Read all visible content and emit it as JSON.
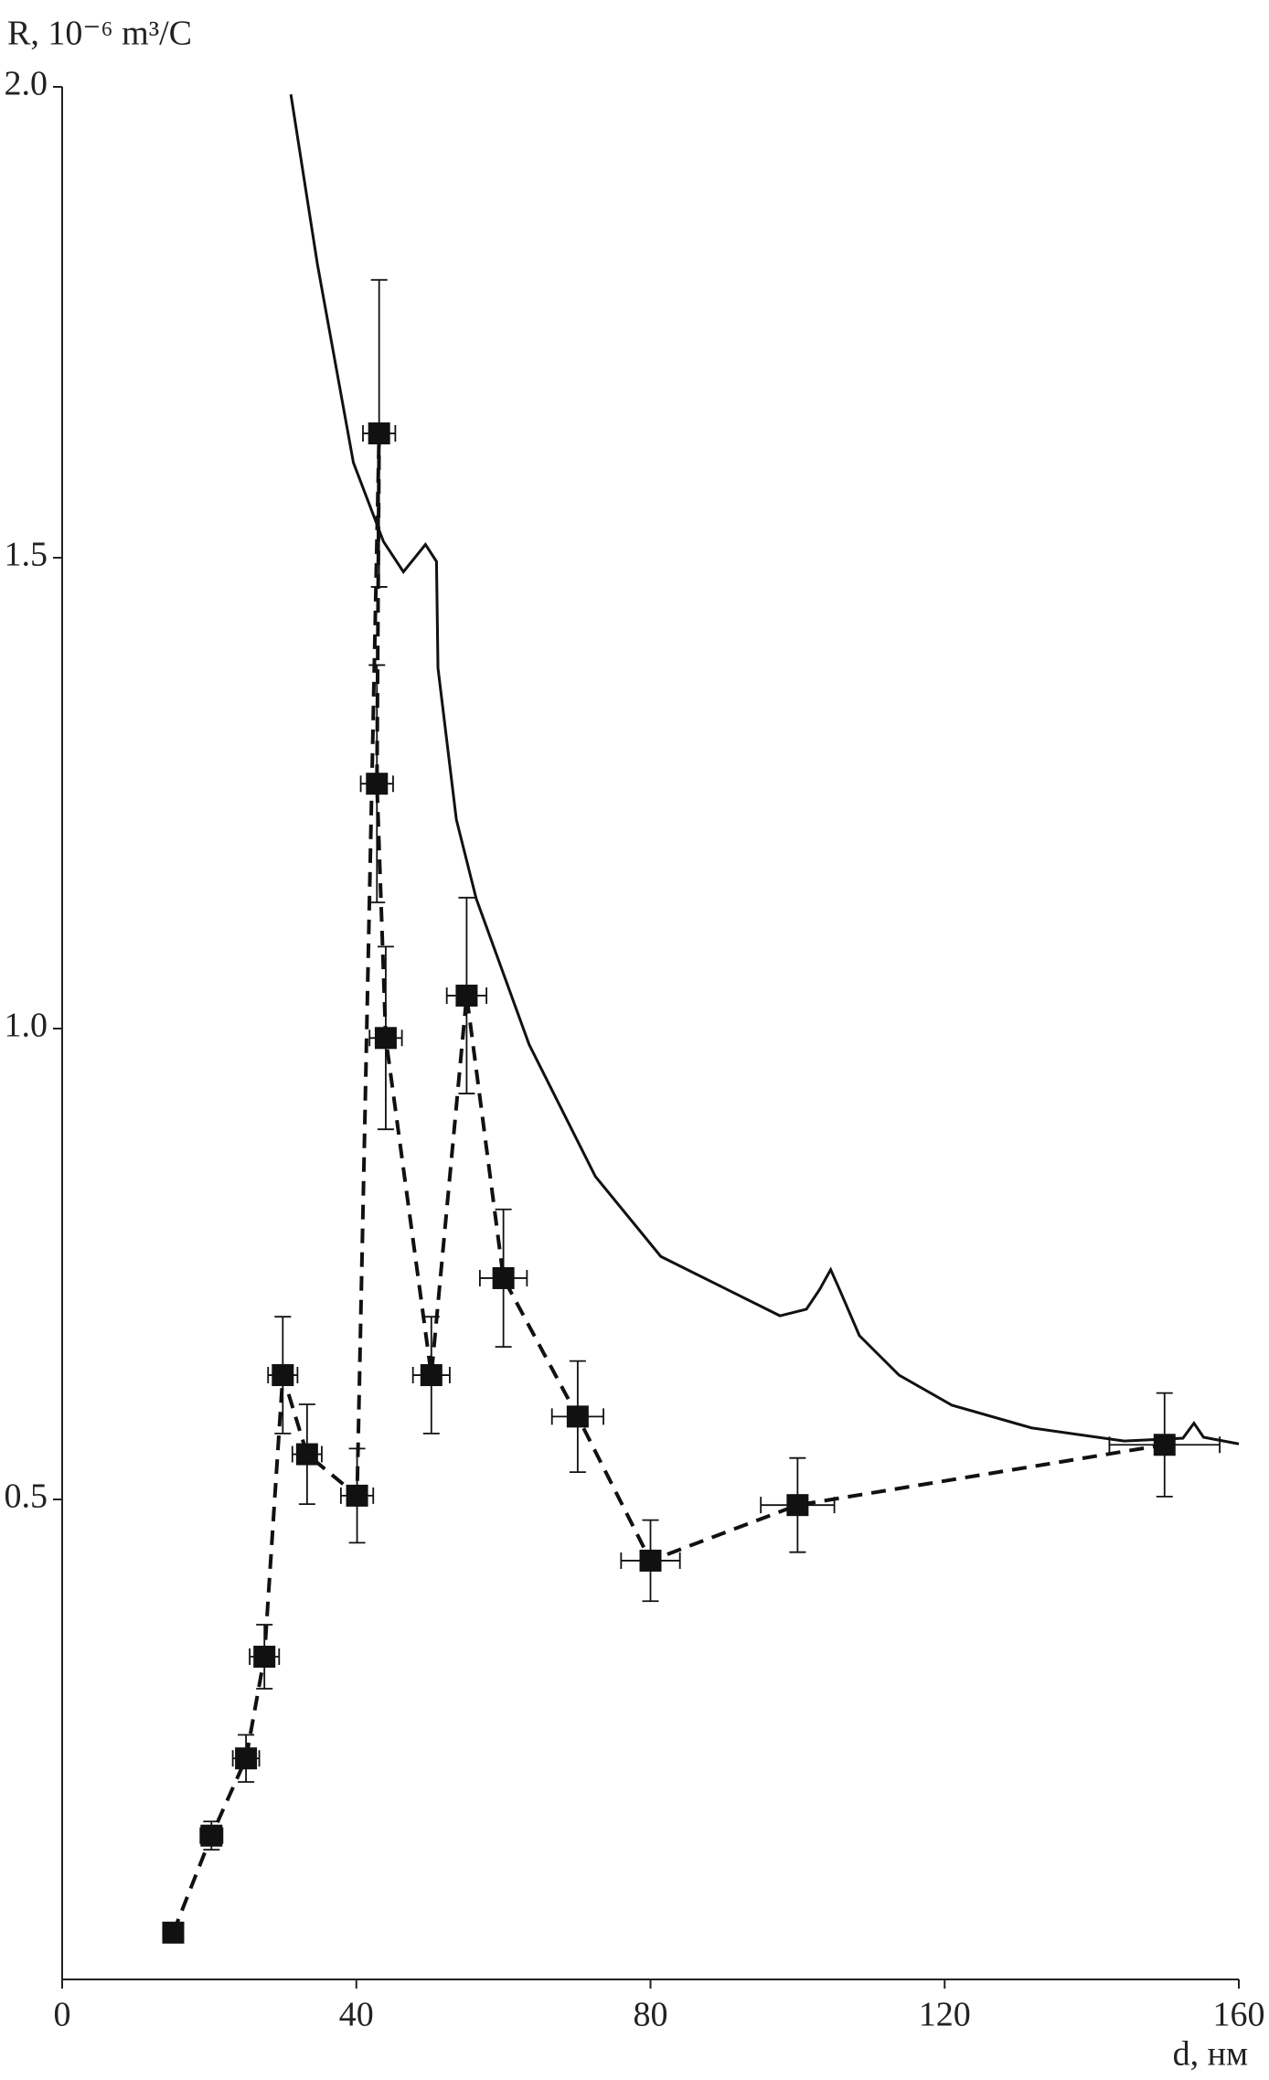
{
  "chart_data": {
    "type": "line",
    "y_label": "R, 10⁻⁶ m³/C",
    "x_label": "d, нм",
    "xlim": [
      0,
      160
    ],
    "ylim": [
      0,
      2
    ],
    "xticks": [
      0,
      40,
      80,
      120,
      160
    ],
    "yticks": [
      0.5,
      {
        "value": 1,
        "label": "1.0"
      },
      1.5,
      {
        "value": 2,
        "label": "2.0"
      }
    ],
    "series": [
      {
        "color": "#111111",
        "line": "dashed",
        "marker": "square",
        "x": [
          15.1,
          20.3,
          25.0,
          27.5,
          30.0,
          33.3,
          40.1,
          43.1,
          42.8,
          44.0,
          50.2,
          55.0,
          60.0,
          70.1,
          80.0,
          100.0,
          149.9
        ],
        "values": [
          0.04,
          0.143,
          0.225,
          0.333,
          0.632,
          0.548,
          0.504,
          1.632,
          1.26,
          0.99,
          0.632,
          1.035,
          0.735,
          0.588,
          0.435,
          0.494,
          0.558
        ],
        "errors": [
          null,
          0.015,
          0.025,
          0.034,
          0.062,
          0.053,
          0.05,
          0.163,
          0.126,
          0.097,
          0.062,
          0.104,
          0.073,
          0.059,
          0.043,
          0.05,
          0.055
        ],
        "x_errors": [
          null,
          1.5,
          1.8,
          2.0,
          2.0,
          2.0,
          2.2,
          2.2,
          2.2,
          2.2,
          2.5,
          2.7,
          3.2,
          3.5,
          4.0,
          5.0,
          7.5
        ]
      },
      {
        "color": "#111111",
        "line": "solid",
        "x": [
          31.1,
          34.7,
          39.6,
          43.7,
          46.4,
          49.4,
          50.9,
          51.1,
          53.6,
          56.3,
          63.5,
          72.5,
          81.4,
          90.4,
          97.6,
          101.2,
          103.0,
          104.5,
          105.7,
          108.4,
          113.8,
          121.0,
          131.8,
          144.4,
          152.4,
          153.9,
          155.2,
          160.0
        ],
        "values": [
          1.992,
          1.812,
          1.601,
          1.517,
          1.485,
          1.514,
          1.496,
          1.383,
          1.222,
          1.138,
          0.983,
          0.843,
          0.758,
          0.723,
          0.695,
          0.702,
          0.723,
          0.744,
          0.723,
          0.674,
          0.632,
          0.6,
          0.576,
          0.562,
          0.565,
          0.581,
          0.566,
          0.559
        ]
      }
    ]
  }
}
